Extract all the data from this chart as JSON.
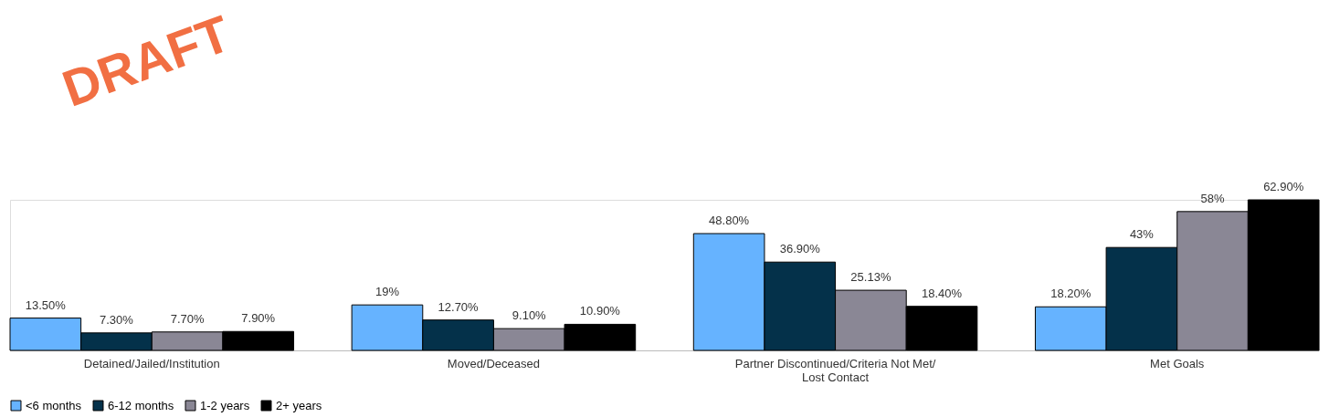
{
  "chart_data": {
    "type": "bar",
    "categories": [
      "Detained/Jailed/Institution",
      "Moved/Deceased",
      "Partner Discontinued/Criteria Not Met/ Lost Contact",
      "Met Goals"
    ],
    "series": [
      {
        "name": "<6 months",
        "color": "#66b3ff",
        "values": [
          13.5,
          19,
          48.8,
          18.2
        ],
        "value_labels": [
          "13.50%",
          "19%",
          "48.80%",
          "18.20%"
        ]
      },
      {
        "name": "6-12 months",
        "color": "#04314a",
        "values": [
          7.3,
          12.7,
          36.9,
          43
        ],
        "value_labels": [
          "7.30%",
          "12.70%",
          "36.90%",
          "43%"
        ]
      },
      {
        "name": "1-2 years",
        "color": "#8a8795",
        "values": [
          7.7,
          9.1,
          25.13,
          58
        ],
        "value_labels": [
          "7.70%",
          "9.10%",
          "25.13%",
          "58%"
        ]
      },
      {
        "name": "2+ years",
        "color": "#000000",
        "values": [
          7.9,
          10.9,
          18.4,
          62.9
        ],
        "value_labels": [
          "7.90%",
          "10.90%",
          "18.40%",
          "62.90%"
        ]
      }
    ],
    "annotations": [
      "DRAFT"
    ],
    "legend": "bottom",
    "grid": false
  }
}
